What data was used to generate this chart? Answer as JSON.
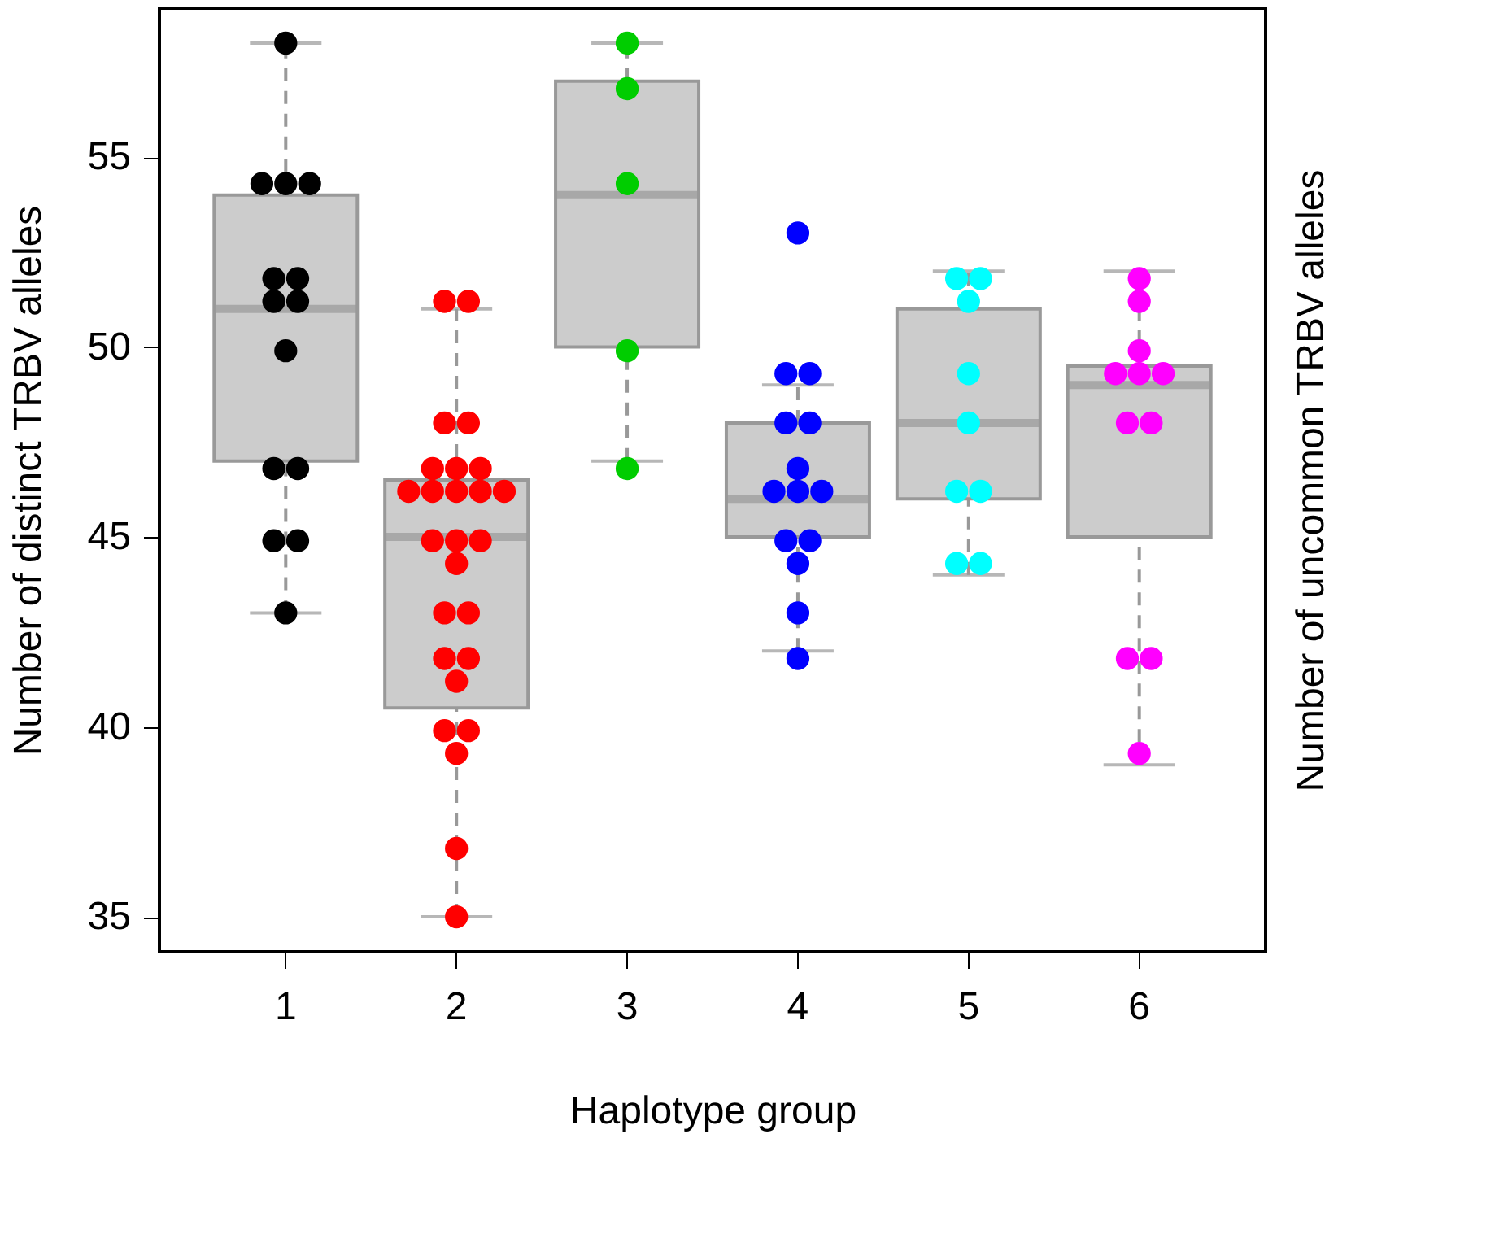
{
  "chart_data": {
    "type": "box",
    "xlabel": "Haplotype group",
    "ylabel": "Number of distinct TRBV alleles",
    "y2label": "Number of uncommon TRBV alleles",
    "categories": [
      "1",
      "2",
      "3",
      "4",
      "5",
      "6"
    ],
    "ylim": [
      34.08,
      58.92
    ],
    "yticks": [
      35,
      40,
      45,
      50,
      55
    ],
    "grid": false,
    "marker": "circle",
    "series": [
      {
        "type": "box",
        "color": "#cccccc",
        "boxes": [
          {
            "low": 43,
            "q1": 47,
            "median": 51,
            "q3": 54,
            "high": 58
          },
          {
            "low": 35,
            "q1": 40.5,
            "median": 45,
            "q3": 46.5,
            "high": 51
          },
          {
            "low": 47,
            "q1": 50,
            "median": 54,
            "q3": 57,
            "high": 58
          },
          {
            "low": 42,
            "q1": 45,
            "median": 46,
            "q3": 48,
            "high": 49
          },
          {
            "low": 44,
            "q1": 46,
            "median": 48,
            "q3": 51,
            "high": 52
          },
          {
            "low": 39,
            "q1": 45,
            "median": 49,
            "q3": 49.5,
            "high": 52
          }
        ]
      },
      {
        "type": "scatter",
        "color": "#000000",
        "x": [
          "1",
          "1",
          "1",
          "1",
          "1",
          "1",
          "1",
          "1",
          "1",
          "1",
          "1",
          "1",
          "1",
          "1"
        ],
        "values": [
          58,
          54.3,
          54.3,
          54.3,
          51.8,
          51.8,
          51.2,
          51.2,
          49.9,
          46.8,
          46.8,
          44.9,
          44.9,
          43.0
        ]
      },
      {
        "type": "scatter",
        "color": "#ff0000",
        "x": [
          "2",
          "2",
          "2",
          "2",
          "2",
          "2",
          "2",
          "2",
          "2",
          "2",
          "2",
          "2",
          "2",
          "2",
          "2",
          "2",
          "2",
          "2",
          "2",
          "2",
          "2",
          "2",
          "2",
          "2",
          "2",
          "2"
        ],
        "values": [
          51.2,
          51.2,
          48.0,
          48.0,
          46.8,
          46.8,
          46.8,
          46.2,
          46.2,
          46.2,
          46.2,
          46.2,
          44.9,
          44.9,
          44.9,
          44.3,
          43.0,
          43.0,
          41.8,
          41.8,
          41.2,
          39.9,
          39.9,
          39.3,
          36.8,
          35
        ]
      },
      {
        "type": "scatter",
        "color": "#00cd00",
        "x": [
          "3",
          "3",
          "3",
          "3",
          "3"
        ],
        "values": [
          58,
          56.8,
          54.3,
          49.9,
          46.8
        ]
      },
      {
        "type": "scatter",
        "color": "#0000ff",
        "x": [
          "4",
          "4",
          "4",
          "4",
          "4",
          "4",
          "4",
          "4",
          "4",
          "4",
          "4",
          "4",
          "4",
          "4"
        ],
        "values": [
          53.0,
          49.3,
          49.3,
          48.0,
          48.0,
          46.8,
          46.2,
          46.2,
          46.2,
          44.9,
          44.9,
          44.3,
          43.0,
          41.8
        ]
      },
      {
        "type": "scatter",
        "color": "#00ffff",
        "x": [
          "5",
          "5",
          "5",
          "5",
          "5",
          "5",
          "5",
          "5",
          "5"
        ],
        "values": [
          51.8,
          51.8,
          51.2,
          49.3,
          48.0,
          46.2,
          46.2,
          44.3,
          44.3
        ]
      },
      {
        "type": "scatter",
        "color": "#ff00ff",
        "x": [
          "6",
          "6",
          "6",
          "6",
          "6",
          "6",
          "6",
          "6",
          "6",
          "6",
          "6"
        ],
        "values": [
          51.8,
          51.2,
          49.9,
          49.3,
          49.3,
          49.3,
          48.0,
          48.0,
          41.8,
          41.8,
          39.3
        ]
      }
    ]
  }
}
